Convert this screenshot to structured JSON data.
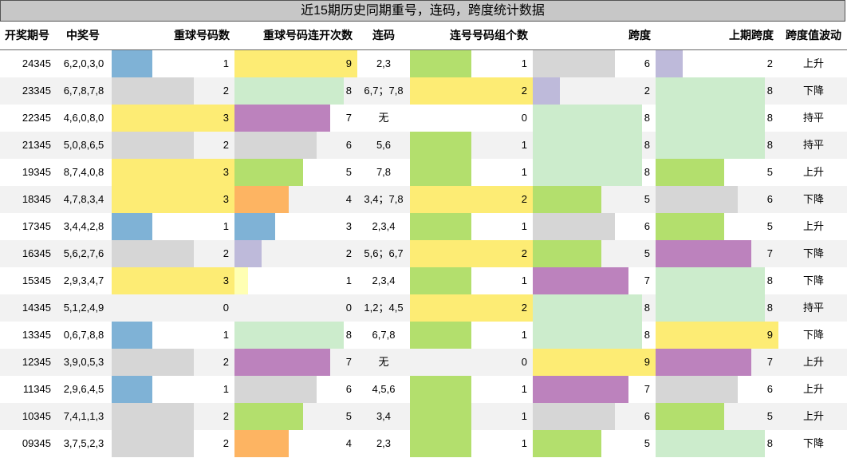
{
  "title": "近15期历史同期重号，连码，跨度统计数据",
  "headers": {
    "period": "开奖期号",
    "numbers": "中奖号",
    "repeat_count": "重球号码数",
    "repeat_streak": "重球号码连开次数",
    "consecutive": "连码",
    "consecutive_groups": "连号号码组个数",
    "span": "跨度",
    "prev_span": "上期跨度",
    "span_trend": "跨度值波动"
  },
  "colors": {
    "blue": "#7fb2d6",
    "gray": "#d6d6d6",
    "yellow": "#fdec74",
    "purple": "#bc82bd",
    "lightgreen": "#cceccc",
    "green": "#b3df6d",
    "orange": "#fdb462",
    "lavender": "#bebada",
    "paleyellow": "#ffffb3"
  },
  "chart_data": {
    "type": "table",
    "title": "近15期历史同期重号，连码，跨度统计数据",
    "columns": [
      "开奖期号",
      "中奖号",
      "重球号码数",
      "重球号码连开次数",
      "连码",
      "连号号码组个数",
      "跨度",
      "上期跨度",
      "跨度值波动"
    ],
    "bar_scales": {
      "repeat_count": [
        0,
        3
      ],
      "repeat_streak": [
        0,
        9
      ],
      "consecutive_groups": [
        0,
        2
      ],
      "span": [
        0,
        9
      ],
      "prev_span": [
        0,
        9
      ]
    },
    "rows": [
      {
        "period": "24345",
        "numbers": "6,2,0,3,0",
        "repeat_count": 1,
        "repeat_count_color": "blue",
        "repeat_streak": 9,
        "repeat_streak_color": "yellow",
        "consecutive": "2,3",
        "consecutive_groups": 1,
        "consecutive_groups_color": "green",
        "span": 6,
        "span_color": "gray",
        "prev_span": 2,
        "prev_span_color": "lavender",
        "span_trend": "上升"
      },
      {
        "period": "23345",
        "numbers": "6,7,8,7,8",
        "repeat_count": 2,
        "repeat_count_color": "gray",
        "repeat_streak": 8,
        "repeat_streak_color": "lightgreen",
        "consecutive": "6,7；7,8",
        "consecutive_groups": 2,
        "consecutive_groups_color": "yellow",
        "span": 2,
        "span_color": "lavender",
        "prev_span": 8,
        "prev_span_color": "lightgreen",
        "span_trend": "下降"
      },
      {
        "period": "22345",
        "numbers": "4,6,0,8,0",
        "repeat_count": 3,
        "repeat_count_color": "yellow",
        "repeat_streak": 7,
        "repeat_streak_color": "purple",
        "consecutive": "无",
        "consecutive_groups": 0,
        "consecutive_groups_color": "green",
        "span": 8,
        "span_color": "lightgreen",
        "prev_span": 8,
        "prev_span_color": "lightgreen",
        "span_trend": "持平"
      },
      {
        "period": "21345",
        "numbers": "5,0,8,6,5",
        "repeat_count": 2,
        "repeat_count_color": "gray",
        "repeat_streak": 6,
        "repeat_streak_color": "gray",
        "consecutive": "5,6",
        "consecutive_groups": 1,
        "consecutive_groups_color": "green",
        "span": 8,
        "span_color": "lightgreen",
        "prev_span": 8,
        "prev_span_color": "lightgreen",
        "span_trend": "持平"
      },
      {
        "period": "19345",
        "numbers": "8,7,4,0,8",
        "repeat_count": 3,
        "repeat_count_color": "yellow",
        "repeat_streak": 5,
        "repeat_streak_color": "green",
        "consecutive": "7,8",
        "consecutive_groups": 1,
        "consecutive_groups_color": "green",
        "span": 8,
        "span_color": "lightgreen",
        "prev_span": 5,
        "prev_span_color": "green",
        "span_trend": "上升"
      },
      {
        "period": "18345",
        "numbers": "4,7,8,3,4",
        "repeat_count": 3,
        "repeat_count_color": "yellow",
        "repeat_streak": 4,
        "repeat_streak_color": "orange",
        "consecutive": "3,4；7,8",
        "consecutive_groups": 2,
        "consecutive_groups_color": "yellow",
        "span": 5,
        "span_color": "green",
        "prev_span": 6,
        "prev_span_color": "gray",
        "span_trend": "下降"
      },
      {
        "period": "17345",
        "numbers": "3,4,4,2,8",
        "repeat_count": 1,
        "repeat_count_color": "blue",
        "repeat_streak": 3,
        "repeat_streak_color": "blue",
        "consecutive": "2,3,4",
        "consecutive_groups": 1,
        "consecutive_groups_color": "green",
        "span": 6,
        "span_color": "gray",
        "prev_span": 5,
        "prev_span_color": "green",
        "span_trend": "上升"
      },
      {
        "period": "16345",
        "numbers": "5,6,2,7,6",
        "repeat_count": 2,
        "repeat_count_color": "gray",
        "repeat_streak": 2,
        "repeat_streak_color": "lavender",
        "consecutive": "5,6；6,7",
        "consecutive_groups": 2,
        "consecutive_groups_color": "yellow",
        "span": 5,
        "span_color": "green",
        "prev_span": 7,
        "prev_span_color": "purple",
        "span_trend": "下降"
      },
      {
        "period": "15345",
        "numbers": "2,9,3,4,7",
        "repeat_count": 3,
        "repeat_count_color": "yellow",
        "repeat_streak": 1,
        "repeat_streak_color": "paleyellow",
        "consecutive": "2,3,4",
        "consecutive_groups": 1,
        "consecutive_groups_color": "green",
        "span": 7,
        "span_color": "purple",
        "prev_span": 8,
        "prev_span_color": "lightgreen",
        "span_trend": "下降"
      },
      {
        "period": "14345",
        "numbers": "5,1,2,4,9",
        "repeat_count": 0,
        "repeat_count_color": "gray",
        "repeat_streak": 0,
        "repeat_streak_color": "gray",
        "consecutive": "1,2；4,5",
        "consecutive_groups": 2,
        "consecutive_groups_color": "yellow",
        "span": 8,
        "span_color": "lightgreen",
        "prev_span": 8,
        "prev_span_color": "lightgreen",
        "span_trend": "持平"
      },
      {
        "period": "13345",
        "numbers": "0,6,7,8,8",
        "repeat_count": 1,
        "repeat_count_color": "blue",
        "repeat_streak": 8,
        "repeat_streak_color": "lightgreen",
        "consecutive": "6,7,8",
        "consecutive_groups": 1,
        "consecutive_groups_color": "green",
        "span": 8,
        "span_color": "lightgreen",
        "prev_span": 9,
        "prev_span_color": "yellow",
        "span_trend": "下降"
      },
      {
        "period": "12345",
        "numbers": "3,9,0,5,3",
        "repeat_count": 2,
        "repeat_count_color": "gray",
        "repeat_streak": 7,
        "repeat_streak_color": "purple",
        "consecutive": "无",
        "consecutive_groups": 0,
        "consecutive_groups_color": "green",
        "span": 9,
        "span_color": "yellow",
        "prev_span": 7,
        "prev_span_color": "purple",
        "span_trend": "上升"
      },
      {
        "period": "11345",
        "numbers": "2,9,6,4,5",
        "repeat_count": 1,
        "repeat_count_color": "blue",
        "repeat_streak": 6,
        "repeat_streak_color": "gray",
        "consecutive": "4,5,6",
        "consecutive_groups": 1,
        "consecutive_groups_color": "green",
        "span": 7,
        "span_color": "purple",
        "prev_span": 6,
        "prev_span_color": "gray",
        "span_trend": "上升"
      },
      {
        "period": "10345",
        "numbers": "7,4,1,1,3",
        "repeat_count": 2,
        "repeat_count_color": "gray",
        "repeat_streak": 5,
        "repeat_streak_color": "green",
        "consecutive": "3,4",
        "consecutive_groups": 1,
        "consecutive_groups_color": "green",
        "span": 6,
        "span_color": "gray",
        "prev_span": 5,
        "prev_span_color": "green",
        "span_trend": "上升"
      },
      {
        "period": "09345",
        "numbers": "3,7,5,2,3",
        "repeat_count": 2,
        "repeat_count_color": "gray",
        "repeat_streak": 4,
        "repeat_streak_color": "orange",
        "consecutive": "2,3",
        "consecutive_groups": 1,
        "consecutive_groups_color": "green",
        "span": 5,
        "span_color": "green",
        "prev_span": 8,
        "prev_span_color": "lightgreen",
        "span_trend": "下降"
      }
    ]
  }
}
